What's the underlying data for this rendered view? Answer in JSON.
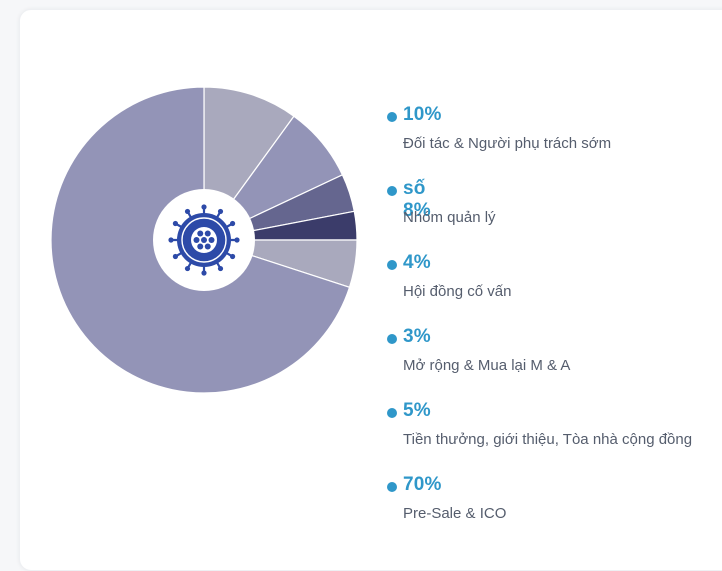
{
  "colors": {
    "accent": "#2f97c9",
    "legend_text": "#555d6d",
    "hole": "#ffffff",
    "logo": "#2d4aa8"
  },
  "chart_data": {
    "type": "pie",
    "donut": true,
    "start": "top",
    "direction": "clockwise",
    "legend_position": "right",
    "center_icon": "ship-wheel-logo-icon",
    "slices": [
      {
        "label": "Đối tác & Người phụ trách sớm",
        "value_text": "10%",
        "value": 10,
        "color": "#a9a9bd"
      },
      {
        "label": "Nhóm quản lý",
        "value_text": "số 8%",
        "value": 8,
        "color": "#9394b7"
      },
      {
        "label": "Hội đồng cố vấn",
        "value_text": "4%",
        "value": 4,
        "color": "#65668f"
      },
      {
        "label": "Mở rộng & Mua lại M & A",
        "value_text": "3%",
        "value": 3,
        "color": "#3b3c6a"
      },
      {
        "label": "Tiền thưởng, giới thiệu, Tòa nhà cộng đồng",
        "value_text": "5%",
        "value": 5,
        "color": "#a9a9bd"
      },
      {
        "label": "Pre-Sale & ICO",
        "value_text": "70%",
        "value": 70,
        "color": "#9394b7"
      }
    ]
  }
}
